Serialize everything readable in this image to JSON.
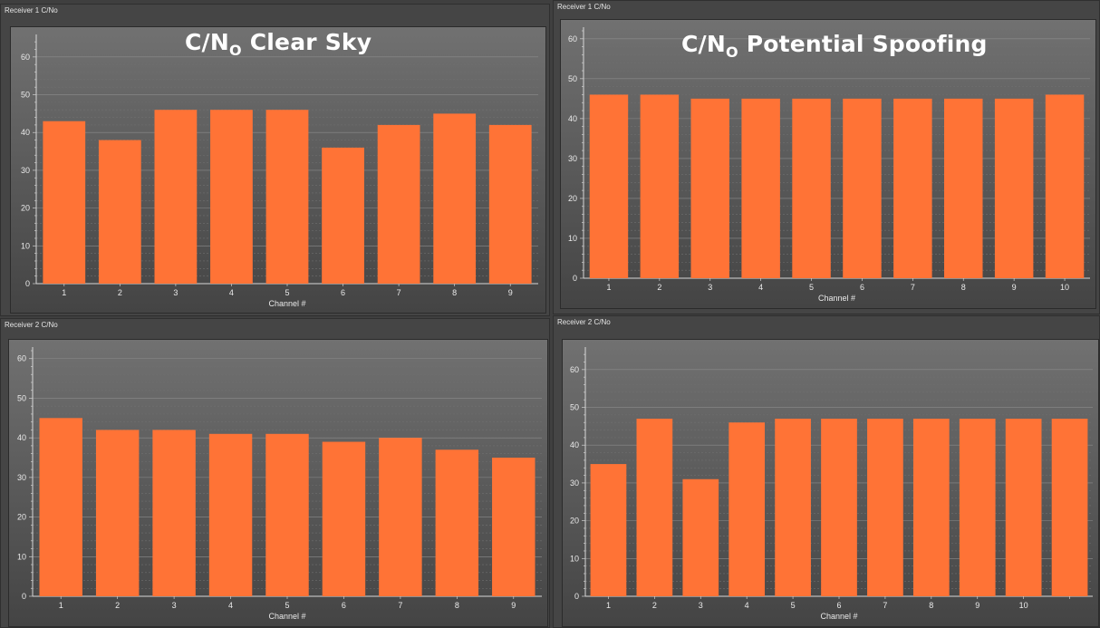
{
  "panels": [
    {
      "title": "Receiver 1 C/No",
      "overlay": {
        "pre": "C/N",
        "sub": "O",
        "post": " Clear Sky"
      },
      "chart_data": {
        "type": "bar",
        "categories": [
          "1",
          "2",
          "3",
          "4",
          "5",
          "6",
          "7",
          "8",
          "9"
        ],
        "values": [
          43,
          38,
          46,
          46,
          46,
          36,
          42,
          45,
          42
        ],
        "xlabel": "Channel #",
        "ylabel": "",
        "ylim": [
          0,
          65
        ],
        "yticks": [
          0,
          10,
          20,
          30,
          40,
          50,
          60
        ],
        "bar_color": "#ff7336",
        "grid": true
      }
    },
    {
      "title": "Receiver 1 C/No",
      "overlay": {
        "pre": "C/N",
        "sub": "O",
        "post": " Potential Spoofing"
      },
      "chart_data": {
        "type": "bar",
        "categories": [
          "1",
          "2",
          "3",
          "4",
          "5",
          "6",
          "7",
          "8",
          "9",
          "10"
        ],
        "values": [
          46,
          46,
          45,
          45,
          45,
          45,
          45,
          45,
          45,
          46
        ],
        "xlabel": "Channel #",
        "ylabel": "",
        "ylim": [
          0,
          62
        ],
        "yticks": [
          0,
          10,
          20,
          30,
          40,
          50,
          60
        ],
        "bar_color": "#ff7336",
        "grid": true
      }
    },
    {
      "title": "Receiver 2 C/No",
      "overlay": null,
      "chart_data": {
        "type": "bar",
        "categories": [
          "1",
          "2",
          "3",
          "4",
          "5",
          "6",
          "7",
          "8",
          "9"
        ],
        "values": [
          45,
          42,
          42,
          41,
          41,
          39,
          40,
          37,
          35
        ],
        "xlabel": "Channel #",
        "ylabel": "",
        "ylim": [
          0,
          62
        ],
        "yticks": [
          0,
          10,
          20,
          30,
          40,
          50,
          60
        ],
        "bar_color": "#ff7336",
        "grid": true
      }
    },
    {
      "title": "Receiver 2 C/No",
      "overlay": null,
      "chart_data": {
        "type": "bar",
        "categories": [
          "1",
          "2",
          "3",
          "4",
          "5",
          "6",
          "7",
          "8",
          "9",
          "10",
          ""
        ],
        "values": [
          35,
          47,
          31,
          46,
          47,
          47,
          47,
          47,
          47,
          47,
          47
        ],
        "xlabel": "Channel #",
        "ylabel": "",
        "ylim": [
          0,
          65
        ],
        "yticks": [
          0,
          10,
          20,
          30,
          40,
          50,
          60
        ],
        "bar_color": "#ff7336",
        "grid": true
      }
    }
  ]
}
